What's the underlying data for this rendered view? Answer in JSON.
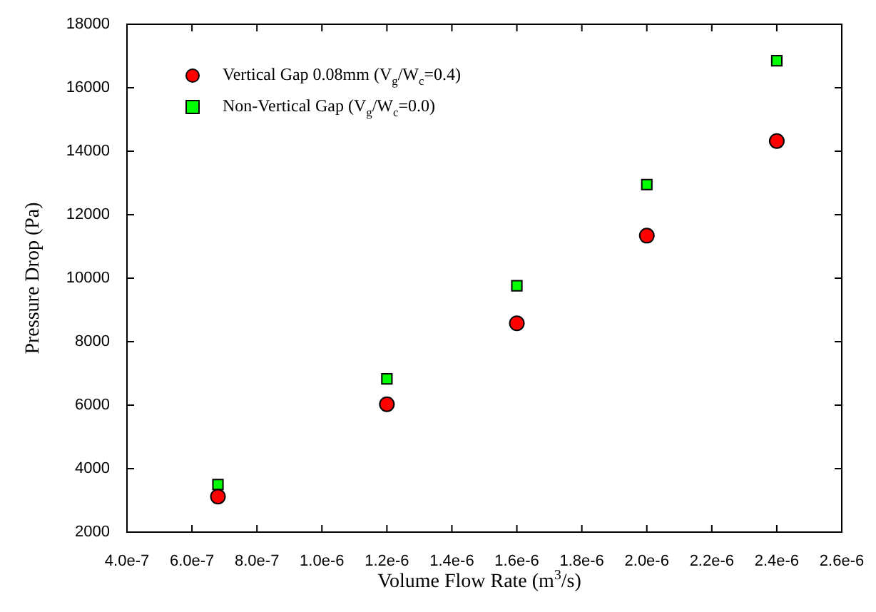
{
  "chart_data": {
    "type": "scatter",
    "xlabel": "Volume Flow Rate (m$^{3}$/s)",
    "ylabel": "Pressure Drop (Pa)",
    "series": [
      {
        "name": "Vertical Gap 0.08mm (V$_{g}$/W$_{c}$=0.4)",
        "color": "#ff0000",
        "marker": "circle",
        "x": [
          6.8e-07,
          1.2e-06,
          1.6e-06,
          2e-06,
          2.4e-06
        ],
        "values": [
          3120,
          6030,
          8580,
          11340,
          14320
        ]
      },
      {
        "name": "Non-Vertical Gap (V$_{g}$/W$_{c}$=0.0)",
        "color": "#00ff00",
        "marker": "square",
        "x": [
          6.8e-07,
          1.2e-06,
          1.6e-06,
          2e-06,
          2.4e-06
        ],
        "values": [
          3500,
          6830,
          9760,
          12950,
          16850
        ]
      }
    ],
    "xlim": [
      4e-07,
      2.6e-06
    ],
    "xticks": [
      {
        "value": 4e-07,
        "label": "4.0e-7"
      },
      {
        "value": 6e-07,
        "label": "6.0e-7"
      },
      {
        "value": 8e-07,
        "label": "8.0e-7"
      },
      {
        "value": 1e-06,
        "label": "1.0e-6"
      },
      {
        "value": 1.2e-06,
        "label": "1.2e-6"
      },
      {
        "value": 1.4e-06,
        "label": "1.4e-6"
      },
      {
        "value": 1.6e-06,
        "label": "1.6e-6"
      },
      {
        "value": 1.8e-06,
        "label": "1.8e-6"
      },
      {
        "value": 2e-06,
        "label": "2.0e-6"
      },
      {
        "value": 2.2e-06,
        "label": "2.2e-6"
      },
      {
        "value": 2.4e-06,
        "label": "2.4e-6"
      },
      {
        "value": 2.6e-06,
        "label": "2.6e-6"
      }
    ],
    "ylim": [
      2000,
      18000
    ],
    "yticks": [
      2000,
      4000,
      6000,
      8000,
      10000,
      12000,
      14000,
      16000,
      18000
    ],
    "grid": false,
    "legend": "top left"
  }
}
